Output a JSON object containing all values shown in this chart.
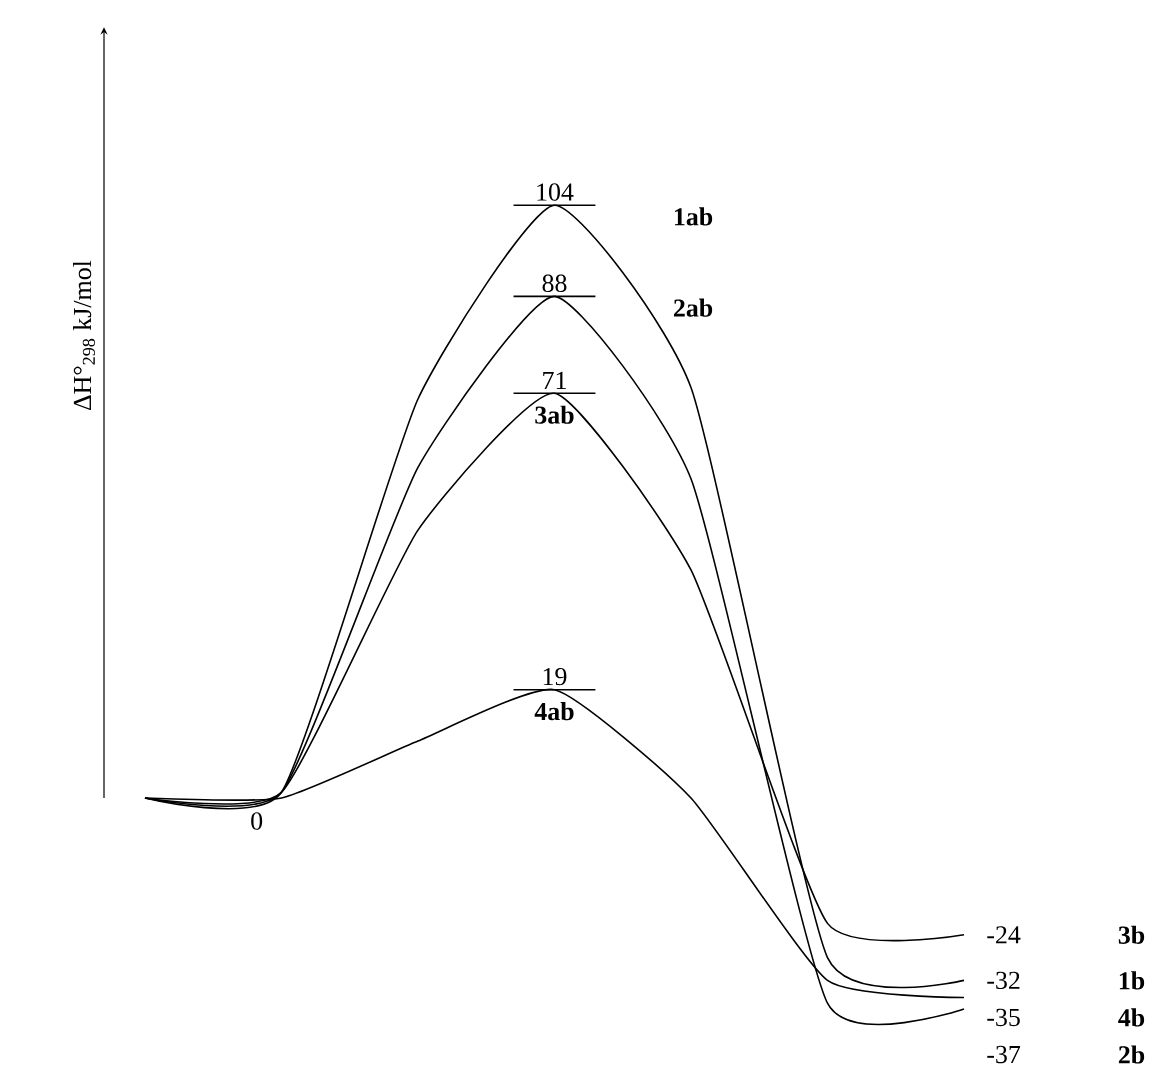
{
  "chart_data": {
    "type": "line",
    "ylabel": "ΔH°$_{298}$ kJ/mol",
    "categories": [
      null,
      null,
      null,
      null,
      null,
      null,
      null
    ],
    "marker": "none",
    "line_style": "solid",
    "series": [
      {
        "color": "#000000",
        "values": [
          0,
          1,
          70,
          104,
          72,
          -28,
          -32
        ],
        "value_labels": [
          null,
          null,
          null,
          "104",
          null,
          null,
          "-32"
        ]
      },
      {
        "color": "#000000",
        "values": [
          0,
          1,
          58,
          88,
          56,
          -36,
          -37
        ],
        "value_labels": [
          null,
          null,
          null,
          "88",
          null,
          null,
          "-37"
        ]
      },
      {
        "color": "#000000",
        "values": [
          0,
          1,
          47,
          71,
          40,
          -22,
          -24
        ],
        "value_labels": [
          null,
          null,
          null,
          "71",
          null,
          null,
          "-24"
        ]
      },
      {
        "color": "#000000",
        "values": [
          0,
          0,
          10,
          19,
          0,
          -32,
          -35
        ],
        "value_labels": [
          null,
          "0",
          null,
          "19",
          null,
          null,
          "-35"
        ]
      }
    ],
    "annotations": [
      "1ab",
      "2ab",
      "3ab",
      "4ab",
      "3b",
      "1b",
      "4b",
      "2b"
    ]
  }
}
